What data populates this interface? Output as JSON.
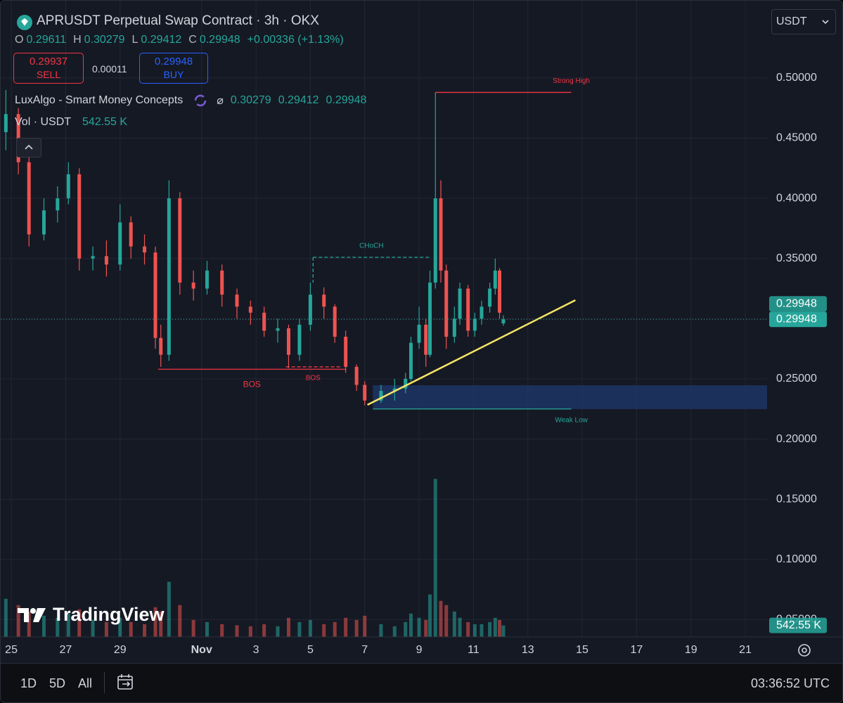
{
  "header": {
    "symbol": "APRUSDT Perpetual Swap Contract · 3h · OKX",
    "ohlc": [
      {
        "label": "O",
        "value": 0.29611
      },
      {
        "label": "H",
        "value": 0.30279
      },
      {
        "label": "L",
        "value": 0.29412
      },
      {
        "label": "C",
        "value": 0.29948
      }
    ],
    "change": "+0.00336 (+1.13%)",
    "sell": {
      "price": 0.29937,
      "label": "SELL"
    },
    "spread": 0.00011,
    "buy": {
      "price": 0.29948,
      "label": "BUY"
    },
    "indicator": {
      "name": "LuxAlgo - Smart Money Concepts",
      "symbol": "⌀",
      "values": [
        0.30279,
        0.29412,
        0.29948
      ]
    },
    "volume": {
      "name": "Vol · USDT",
      "value": "542.55 K"
    },
    "currency": "USDT"
  },
  "watermark": "TradingView",
  "toolbar": {
    "ranges": [
      "1D",
      "5D",
      "All"
    ],
    "time": "03:36:52 UTC"
  },
  "chart_data": {
    "type": "candlestick",
    "xlim": [
      -0.39,
      27.8
    ],
    "xticks": [
      {
        "value": 0,
        "label": "25"
      },
      {
        "value": 2,
        "label": "27"
      },
      {
        "value": 4,
        "label": "29"
      },
      {
        "value": 7,
        "label": "Nov"
      },
      {
        "value": 9,
        "label": "3"
      },
      {
        "value": 11,
        "label": "5"
      },
      {
        "value": 13,
        "label": "7"
      },
      {
        "value": 15,
        "label": "9"
      },
      {
        "value": 17,
        "label": "11"
      },
      {
        "value": 19,
        "label": "13"
      },
      {
        "value": 21,
        "label": "15"
      },
      {
        "value": 23,
        "label": "17"
      },
      {
        "value": 25,
        "label": "19"
      },
      {
        "value": 27,
        "label": "21"
      }
    ],
    "ylim": [
      0.0356,
      0.5642
    ],
    "yticks": [
      {
        "value": 0.05,
        "label": "0.05000"
      },
      {
        "value": 0.1,
        "label": "0.10000"
      },
      {
        "value": 0.15,
        "label": "0.15000"
      },
      {
        "value": 0.2,
        "label": "0.20000"
      },
      {
        "value": 0.25,
        "label": "0.25000"
      },
      {
        "value": 0.3,
        "label": "0.30000"
      },
      {
        "value": 0.35,
        "label": "0.35000"
      },
      {
        "value": 0.4,
        "label": "0.40000"
      },
      {
        "value": 0.45,
        "label": "0.45000"
      },
      {
        "value": 0.5,
        "label": "0.50000"
      }
    ],
    "volume_lim": [
      0,
      30000
    ],
    "grid": true,
    "up_color": "#26a69a",
    "down_color": "#ef5350",
    "candles": {
      "x": [
        -0.2,
        0.26,
        0.65,
        1.2,
        1.7,
        2.1,
        2.5,
        3.0,
        3.5,
        4.0,
        4.4,
        4.9,
        5.3,
        5.5,
        5.8,
        6.2,
        6.7,
        7.2,
        7.75,
        8.3,
        8.8,
        9.3,
        9.8,
        10.2,
        10.6,
        11.0,
        11.5,
        11.9,
        12.3,
        12.7,
        13.0,
        13.6,
        14.1,
        14.5,
        14.7,
        15.0,
        15.25,
        15.4,
        15.6,
        15.8,
        16.0,
        16.3,
        16.5,
        16.8,
        17.05,
        17.3,
        17.6,
        17.8,
        17.96,
        18.1
      ],
      "open": [
        0.455,
        0.47,
        0.43,
        0.37,
        0.39,
        0.4,
        0.42,
        0.35,
        0.352,
        0.345,
        0.38,
        0.36,
        0.355,
        0.284,
        0.27,
        0.4,
        0.33,
        0.325,
        0.34,
        0.32,
        0.31,
        0.305,
        0.29,
        0.292,
        0.27,
        0.295,
        0.32,
        0.31,
        0.285,
        0.26,
        0.245,
        0.232,
        0.24,
        0.242,
        0.25,
        0.28,
        0.295,
        0.27,
        0.33,
        0.4,
        0.34,
        0.285,
        0.3,
        0.325,
        0.29,
        0.3,
        0.31,
        0.325,
        0.34,
        0.29611
      ],
      "high": [
        0.49,
        0.475,
        0.435,
        0.4,
        0.41,
        0.43,
        0.425,
        0.36,
        0.365,
        0.395,
        0.385,
        0.37,
        0.36,
        0.295,
        0.415,
        0.405,
        0.34,
        0.348,
        0.345,
        0.325,
        0.315,
        0.31,
        0.3,
        0.295,
        0.3,
        0.33,
        0.326,
        0.312,
        0.29,
        0.262,
        0.248,
        0.245,
        0.25,
        0.255,
        0.285,
        0.31,
        0.3,
        0.34,
        0.488,
        0.415,
        0.345,
        0.31,
        0.33,
        0.328,
        0.305,
        0.315,
        0.33,
        0.35,
        0.342,
        0.30279
      ],
      "low": [
        0.44,
        0.42,
        0.36,
        0.365,
        0.38,
        0.395,
        0.34,
        0.34,
        0.335,
        0.34,
        0.35,
        0.345,
        0.275,
        0.26,
        0.265,
        0.32,
        0.315,
        0.32,
        0.31,
        0.3,
        0.295,
        0.285,
        0.28,
        0.259,
        0.265,
        0.29,
        0.3,
        0.28,
        0.255,
        0.24,
        0.228,
        0.23,
        0.232,
        0.238,
        0.248,
        0.275,
        0.26,
        0.268,
        0.325,
        0.33,
        0.275,
        0.28,
        0.295,
        0.285,
        0.285,
        0.295,
        0.305,
        0.32,
        0.3,
        0.29412
      ],
      "close": [
        0.47,
        0.43,
        0.37,
        0.39,
        0.4,
        0.42,
        0.35,
        0.352,
        0.345,
        0.38,
        0.36,
        0.355,
        0.284,
        0.27,
        0.4,
        0.33,
        0.325,
        0.34,
        0.32,
        0.31,
        0.305,
        0.29,
        0.292,
        0.27,
        0.295,
        0.32,
        0.31,
        0.285,
        0.26,
        0.245,
        0.232,
        0.24,
        0.242,
        0.25,
        0.28,
        0.295,
        0.27,
        0.33,
        0.4,
        0.34,
        0.285,
        0.3,
        0.325,
        0.29,
        0.3,
        0.31,
        0.325,
        0.34,
        0.305,
        0.29948
      ],
      "volume": [
        1800,
        1500,
        1200,
        1000,
        900,
        1100,
        1300,
        800,
        700,
        900,
        700,
        600,
        1400,
        1200,
        2600,
        1500,
        800,
        700,
        600,
        550,
        500,
        600,
        500,
        900,
        700,
        800,
        600,
        700,
        900,
        800,
        1000,
        600,
        500,
        700,
        1100,
        900,
        800,
        2000,
        7450,
        1700,
        1500,
        1200,
        900,
        700,
        600,
        600,
        700,
        900,
        800,
        542.55
      ]
    },
    "levels": [
      {
        "label": "Strong High",
        "value": 0.488,
        "x": [
          15.6,
          20.6
        ],
        "color": "#f23645",
        "dashed": false
      },
      {
        "label": "CHoCH",
        "value": 0.351,
        "x": [
          11.1,
          15.4
        ],
        "color": "#26a69a",
        "dashed": true
      },
      {
        "label": "BOS",
        "value": 0.258,
        "x": [
          5.4,
          12.3
        ],
        "color": "#f23645",
        "dashed": false
      },
      {
        "label": "BOS",
        "value": 0.26,
        "x": [
          10.1,
          12.1
        ],
        "color": "#f23645",
        "dashed": true
      },
      {
        "label": "Weak Low",
        "value": 0.225,
        "x": [
          13.3,
          20.6
        ],
        "color": "#26a69a",
        "dashed": false
      }
    ],
    "zone": {
      "low": 0.2249,
      "high": 0.2447,
      "x": [
        13.3,
        27.8
      ],
      "color": "#1e3a6e"
    },
    "trendline": {
      "x": [
        13.1,
        20.75
      ],
      "y": [
        0.2284,
        0.3154
      ],
      "color": "#f5e663"
    },
    "indicator_price": 0.29948,
    "last_price": 0.29948,
    "last_volume_label": "542.55 K"
  }
}
